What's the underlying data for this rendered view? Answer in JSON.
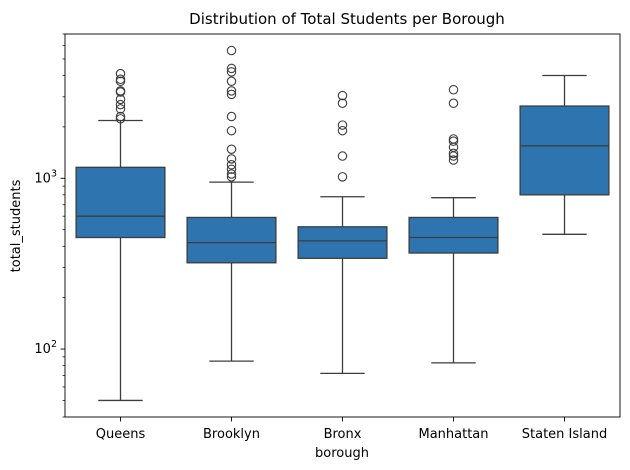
{
  "chart_data": {
    "type": "box",
    "title": "Distribution of Total Students per Borough",
    "xlabel": "borough",
    "ylabel": "total_students",
    "yscale": "log",
    "ylim": [
      40,
      7000
    ],
    "ytick_labels": [
      {
        "value": 100,
        "base": "10",
        "exp": "2"
      },
      {
        "value": 1000,
        "base": "10",
        "exp": "3"
      }
    ],
    "grid": false,
    "color": "#2e75b0",
    "line_color": "#3d3d3d",
    "categories": [
      "Queens",
      "Brooklyn",
      "Bronx",
      "Manhattan",
      "Staten Island"
    ],
    "boxes": [
      {
        "name": "Queens",
        "whisker_low": 50,
        "q1": 450,
        "median": 600,
        "q3": 1160,
        "whisker_high": 2180,
        "outliers": [
          2230,
          2300,
          2550,
          2700,
          2900,
          3200,
          3250,
          3700,
          3800,
          4100
        ]
      },
      {
        "name": "Brooklyn",
        "whisker_low": 85,
        "q1": 320,
        "median": 420,
        "q3": 590,
        "whisker_high": 950,
        "outliers": [
          1020,
          1060,
          1130,
          1200,
          1300,
          1480,
          1900,
          2300,
          3100,
          3250,
          3700,
          4200,
          4400,
          5600
        ]
      },
      {
        "name": "Bronx",
        "whisker_low": 72,
        "q1": 340,
        "median": 430,
        "q3": 520,
        "whisker_high": 780,
        "outliers": [
          1020,
          1350,
          1900,
          2050,
          2750,
          3050
        ]
      },
      {
        "name": "Manhattan",
        "whisker_low": 83,
        "q1": 365,
        "median": 450,
        "q3": 590,
        "whisker_high": 770,
        "outliers": [
          1280,
          1350,
          1400,
          1520,
          1650,
          1700,
          2750,
          3300
        ]
      },
      {
        "name": "Staten Island",
        "whisker_low": 470,
        "q1": 800,
        "median": 1550,
        "q3": 2650,
        "whisker_high": 4000,
        "outliers": []
      }
    ]
  }
}
